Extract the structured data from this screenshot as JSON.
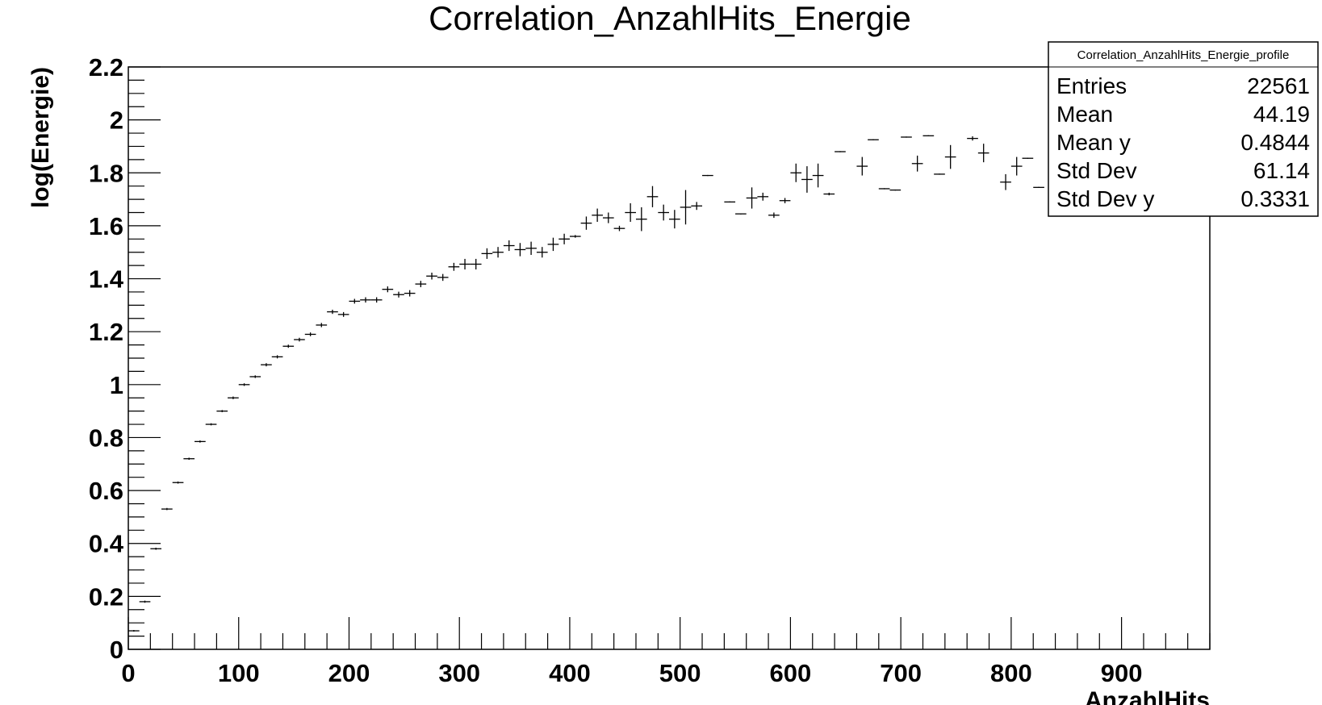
{
  "chart_data": {
    "type": "scatter",
    "title": "Correlation_AnzahlHits_Energie",
    "xlabel": "AnzahlHits",
    "ylabel": "log(Energie)",
    "xlim": [
      0,
      980
    ],
    "ylim": [
      0,
      2.2
    ],
    "xticks": [
      "0",
      "100",
      "200",
      "300",
      "400",
      "500",
      "600",
      "700",
      "800",
      "900"
    ],
    "xtick_values": [
      0,
      100,
      200,
      300,
      400,
      500,
      600,
      700,
      800,
      900
    ],
    "yticks": [
      "0",
      "0.2",
      "0.4",
      "0.6",
      "0.8",
      "1",
      "1.2",
      "1.4",
      "1.6",
      "1.8",
      "2",
      "2.2"
    ],
    "ytick_values": [
      0,
      0.2,
      0.4,
      0.6,
      0.8,
      1.0,
      1.2,
      1.4,
      1.6,
      1.8,
      2.0,
      2.2
    ],
    "grid": false,
    "legend_position": "top-right",
    "bin_width": 10,
    "series": [
      {
        "x": [
          5,
          15,
          25,
          35,
          45,
          55,
          65,
          75,
          85,
          95,
          105,
          115,
          125,
          135,
          145,
          155,
          165,
          175,
          185,
          195,
          205,
          215,
          225,
          235,
          245,
          255,
          265,
          275,
          285,
          295,
          305,
          315,
          325,
          335,
          345,
          355,
          365,
          375,
          385,
          395,
          405,
          415,
          425,
          435,
          445,
          455,
          465,
          475,
          485,
          495,
          505,
          515,
          525,
          545,
          555,
          565,
          575,
          585,
          595,
          605,
          615,
          625,
          635,
          645,
          665,
          675,
          685,
          695,
          705,
          715,
          725,
          735,
          745,
          765,
          775,
          795,
          805,
          815,
          825
        ],
        "y": [
          0.07,
          0.18,
          0.38,
          0.53,
          0.63,
          0.72,
          0.785,
          0.85,
          0.9,
          0.95,
          1.0,
          1.03,
          1.075,
          1.105,
          1.145,
          1.17,
          1.19,
          1.225,
          1.275,
          1.265,
          1.315,
          1.32,
          1.32,
          1.36,
          1.34,
          1.345,
          1.38,
          1.41,
          1.405,
          1.445,
          1.455,
          1.455,
          1.495,
          1.5,
          1.525,
          1.51,
          1.515,
          1.5,
          1.53,
          1.55,
          1.56,
          1.61,
          1.64,
          1.63,
          1.59,
          1.65,
          1.625,
          1.71,
          1.65,
          1.625,
          1.67,
          1.675,
          1.79,
          1.69,
          1.645,
          1.705,
          1.71,
          1.64,
          1.695,
          1.8,
          1.775,
          1.79,
          1.72,
          1.88,
          1.825,
          1.925,
          1.74,
          1.735,
          1.935,
          1.835,
          1.94,
          1.795,
          1.86,
          1.93,
          1.875,
          1.765,
          1.825,
          1.855,
          1.745
        ],
        "yerr": [
          0.003,
          0.004,
          0.004,
          0.004,
          0.004,
          0.004,
          0.004,
          0.004,
          0.004,
          0.005,
          0.005,
          0.005,
          0.006,
          0.006,
          0.006,
          0.007,
          0.007,
          0.008,
          0.008,
          0.009,
          0.009,
          0.01,
          0.01,
          0.011,
          0.011,
          0.012,
          0.012,
          0.013,
          0.013,
          0.015,
          0.02,
          0.02,
          0.02,
          0.02,
          0.02,
          0.025,
          0.025,
          0.02,
          0.025,
          0.02,
          0.005,
          0.025,
          0.025,
          0.02,
          0.01,
          0.035,
          0.045,
          0.04,
          0.03,
          0.035,
          0.065,
          0.015,
          0.002,
          0.002,
          0.002,
          0.04,
          0.015,
          0.01,
          0.01,
          0.035,
          0.05,
          0.045,
          0.005,
          0.002,
          0.035,
          0.002,
          0.002,
          0.002,
          0.002,
          0.03,
          0.002,
          0.002,
          0.045,
          0.008,
          0.035,
          0.03,
          0.035,
          0.002,
          0.002
        ]
      }
    ],
    "stats_box": {
      "title": "Correlation_AnzahlHits_Energie_profile",
      "rows": [
        {
          "label": "Entries",
          "value": "22561"
        },
        {
          "label": "Mean",
          "value": "44.19"
        },
        {
          "label": "Mean y",
          "value": "0.4844"
        },
        {
          "label": "Std Dev",
          "value": "61.14"
        },
        {
          "label": "Std Dev y",
          "value": "0.3331"
        }
      ]
    }
  }
}
